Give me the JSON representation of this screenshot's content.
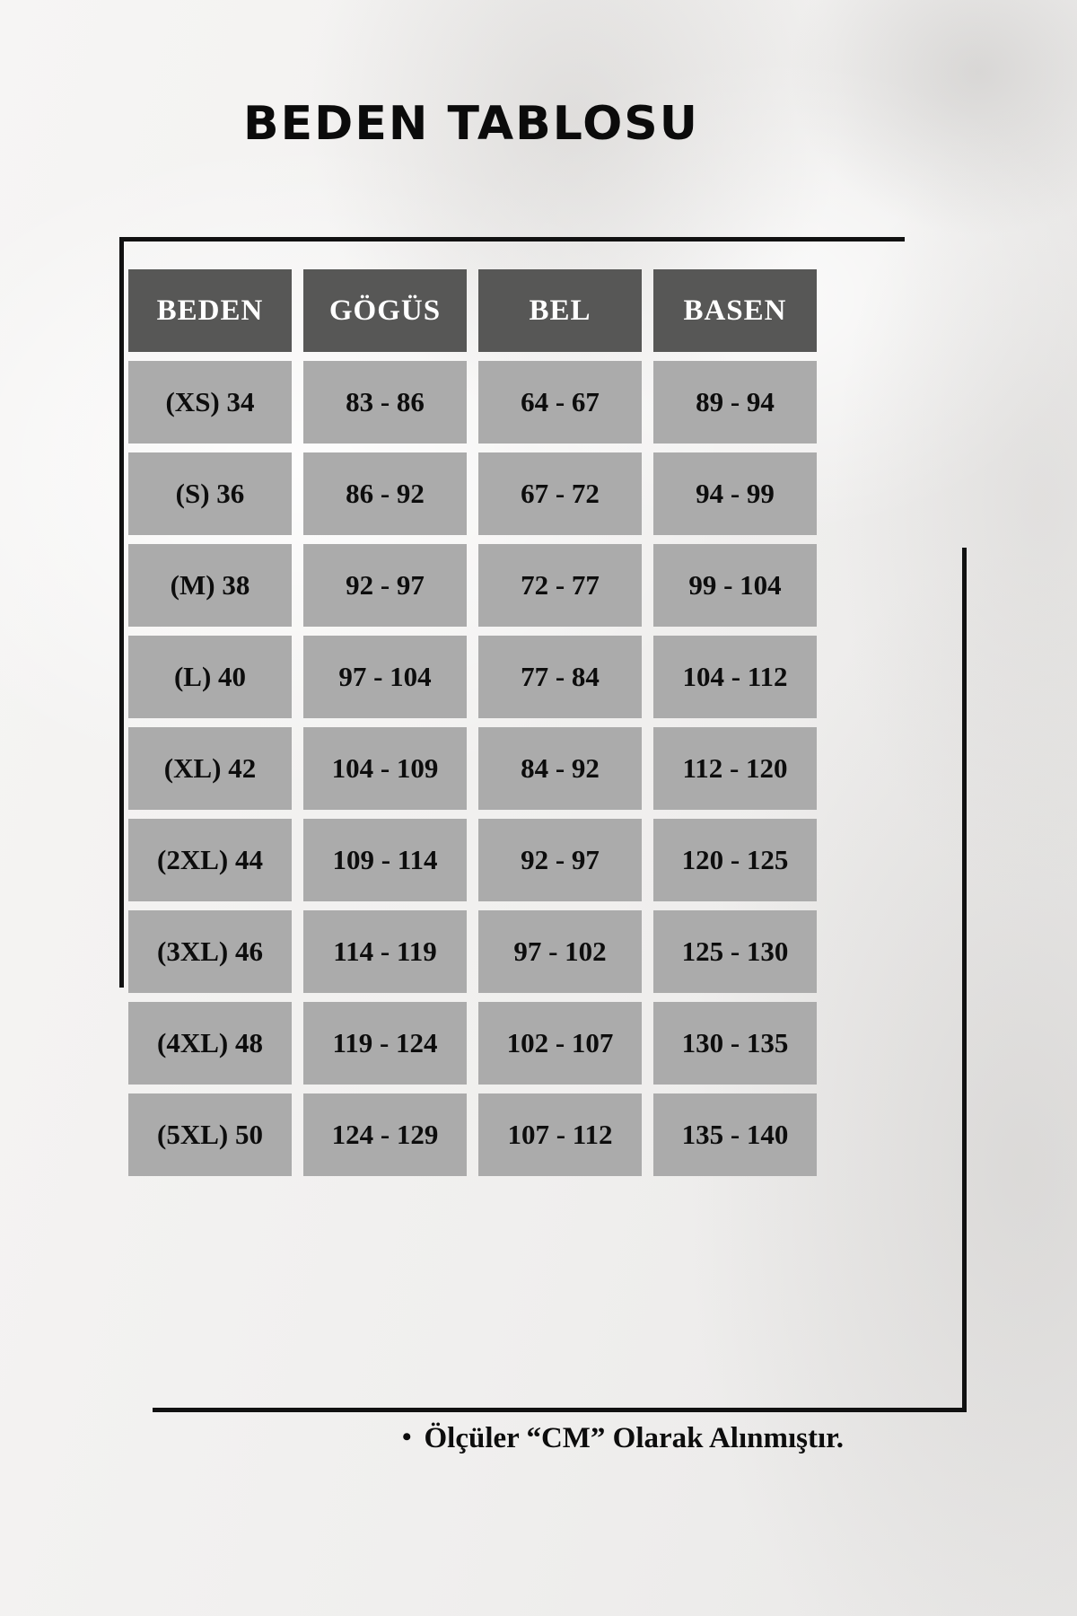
{
  "title": "BEDEN TABLOSU",
  "table": {
    "headers": [
      "BEDEN",
      "GÖGÜS",
      "BEL",
      "BASEN"
    ],
    "rows": [
      [
        "(XS) 34",
        "83 - 86",
        "64 - 67",
        "89 - 94"
      ],
      [
        "(S) 36",
        "86 - 92",
        "67 - 72",
        "94 - 99"
      ],
      [
        "(M) 38",
        "92 - 97",
        "72 - 77",
        "99 - 104"
      ],
      [
        "(L) 40",
        "97 - 104",
        "77 - 84",
        "104 - 112"
      ],
      [
        "(XL) 42",
        "104 - 109",
        "84 - 92",
        "112 - 120"
      ],
      [
        "(2XL) 44",
        "109 - 114",
        "92 - 97",
        "120 - 125"
      ],
      [
        "(3XL) 46",
        "114 - 119",
        "97 - 102",
        "125 - 130"
      ],
      [
        "(4XL) 48",
        "119 - 124",
        "102 - 107",
        "130 - 135"
      ],
      [
        "(5XL) 50",
        "124 - 129",
        "107 - 112",
        "135 - 140"
      ]
    ]
  },
  "note": {
    "bullet": "•",
    "text": "Ölçüler “CM” Olarak Alınmıştır."
  },
  "colors": {
    "header_bg": "#575756",
    "header_text": "#ffffff",
    "cell_bg": "#ababab",
    "cell_text": "#0d0d0d",
    "frame_color": "#111111"
  }
}
